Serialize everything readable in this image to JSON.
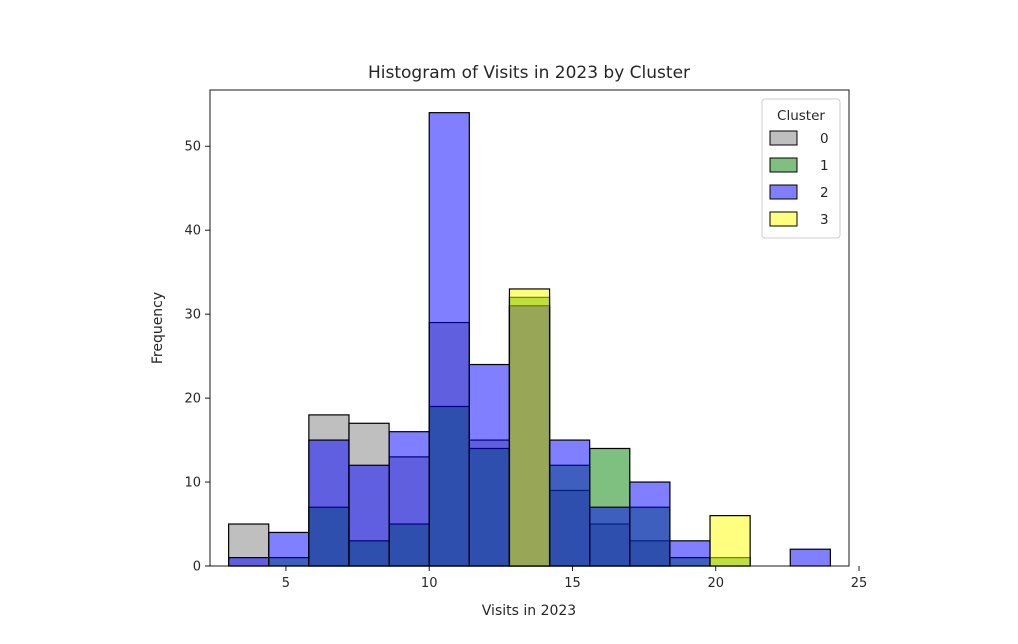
{
  "chart_data": {
    "type": "histogram",
    "title": "Histogram of Visits in 2023 by Cluster",
    "xlabel": "Visits in 2023",
    "ylabel": "Frequency",
    "xlim": [
      2.35,
      24.65
    ],
    "ylim": [
      0,
      56.7
    ],
    "xticks": [
      5,
      10,
      15,
      20,
      25
    ],
    "yticks": [
      0,
      10,
      20,
      30,
      40,
      50
    ],
    "bin_edges": [
      3.0,
      4.4,
      5.8,
      7.2,
      8.6,
      10.0,
      11.4,
      12.8,
      14.2,
      15.6,
      17.0,
      18.4,
      19.8,
      21.2,
      22.6,
      24.0
    ],
    "legend": {
      "title": "Cluster",
      "position": "top-right"
    },
    "series": [
      {
        "name": "0",
        "color": "#808080",
        "values": [
          5,
          0,
          18,
          17,
          13,
          29,
          15,
          31,
          9,
          5,
          3,
          0,
          0,
          0,
          0
        ]
      },
      {
        "name": "1",
        "color": "#008000",
        "values": [
          0,
          1,
          7,
          3,
          5,
          19,
          14,
          32,
          12,
          14,
          7,
          1,
          1,
          0,
          0
        ]
      },
      {
        "name": "2",
        "color": "#0000ff",
        "values": [
          1,
          4,
          15,
          12,
          16,
          54,
          24,
          31,
          15,
          7,
          10,
          3,
          0,
          0,
          2
        ]
      },
      {
        "name": "3",
        "color": "#ffff00",
        "values": [
          0,
          0,
          0,
          0,
          0,
          0,
          0,
          33,
          0,
          0,
          0,
          0,
          6,
          0,
          0
        ]
      }
    ]
  }
}
